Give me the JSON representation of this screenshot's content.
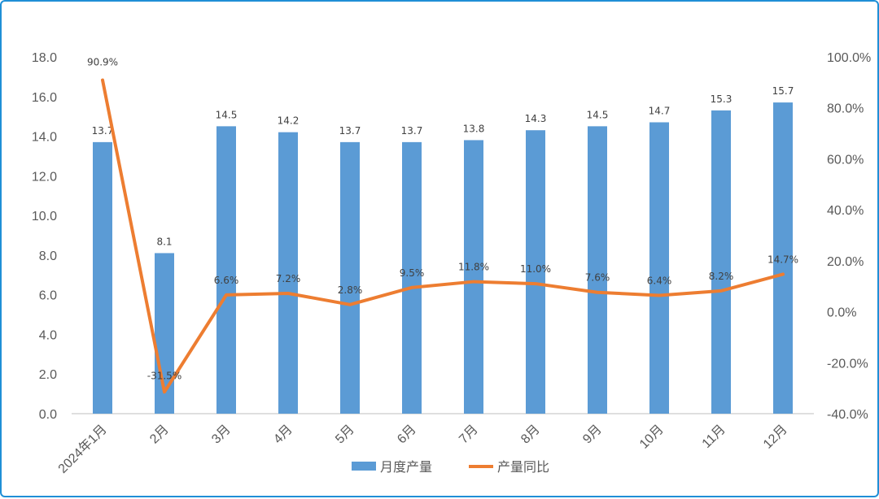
{
  "chart_data": {
    "type": "bar",
    "categories": [
      "2024年1月",
      "2月",
      "3月",
      "4月",
      "5月",
      "6月",
      "7月",
      "8月",
      "9月",
      "10月",
      "11月",
      "12月"
    ],
    "series": [
      {
        "name": "月度产量",
        "type": "bar",
        "axis": "left",
        "values": [
          13.7,
          8.1,
          14.5,
          14.2,
          13.7,
          13.7,
          13.8,
          14.3,
          14.5,
          14.7,
          15.3,
          15.7
        ],
        "labels": [
          "13.7",
          "8.1",
          "14.5",
          "14.2",
          "13.7",
          "13.7",
          "13.8",
          "14.3",
          "14.5",
          "14.7",
          "15.3",
          "15.7"
        ],
        "color": "#5b9bd5"
      },
      {
        "name": "产量同比",
        "type": "line",
        "axis": "right",
        "values": [
          90.9,
          -31.5,
          6.6,
          7.2,
          2.8,
          9.5,
          11.8,
          11.0,
          7.6,
          6.4,
          8.2,
          14.7
        ],
        "labels": [
          "90.9%",
          "-31.5%",
          "6.6%",
          "7.2%",
          "2.8%",
          "9.5%",
          "11.8%",
          "11.0%",
          "7.6%",
          "6.4%",
          "8.2%",
          "14.7%"
        ],
        "color": "#ed7d31"
      }
    ],
    "y_left": {
      "ylim": [
        0,
        18
      ],
      "ticks": [
        "0.0",
        "2.0",
        "4.0",
        "6.0",
        "8.0",
        "10.0",
        "12.0",
        "14.0",
        "16.0",
        "18.0"
      ]
    },
    "y_right": {
      "ylim": [
        -40,
        100
      ],
      "ticks": [
        "-40.0%",
        "-20.0%",
        "0.0%",
        "20.0%",
        "40.0%",
        "60.0%",
        "80.0%",
        "100.0%"
      ]
    },
    "grid": false,
    "legend_position": "bottom"
  }
}
